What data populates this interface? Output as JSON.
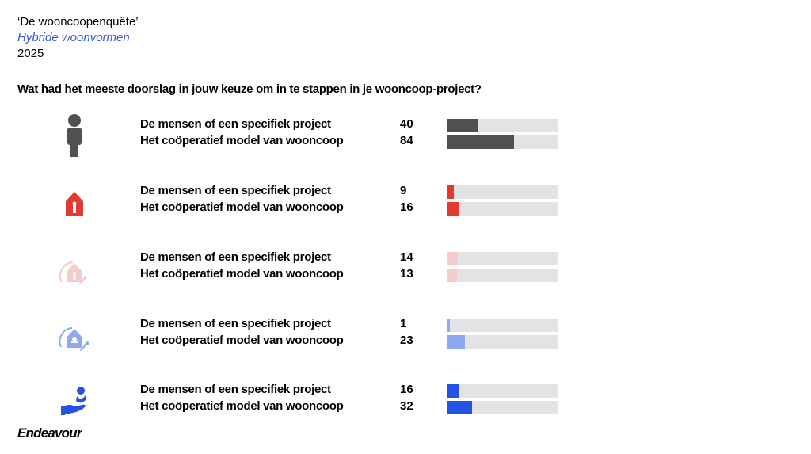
{
  "header": {
    "title": "‘De wooncoopenquête’",
    "subtitle": "Hybride woonvormen",
    "year": "2025"
  },
  "question": "Wat had het meeste doorslag in jouw keuze om in te stappen in je wooncoop-project?",
  "logo": "Endeavour",
  "chart_data": {
    "type": "bar",
    "title": "Wat had het meeste doorslag in jouw keuze om in te stappen in je wooncoop-project?",
    "categories": [
      "De mensen of een specifiek project",
      "Het coöperatief model van wooncoop"
    ],
    "xlim": [
      0,
      140
    ],
    "series": [
      {
        "icon": "person-icon",
        "color": "#505050",
        "values": [
          40,
          84
        ]
      },
      {
        "icon": "house-icon",
        "color": "#e03a33",
        "values": [
          9,
          16
        ]
      },
      {
        "icon": "house-cycle-icon",
        "color": "#f5cccc",
        "values": [
          14,
          13
        ]
      },
      {
        "icon": "house-key-cycle-icon",
        "color": "#8fa8f2",
        "values": [
          1,
          23
        ]
      },
      {
        "icon": "hand-person-icon",
        "color": "#2452e4",
        "values": [
          16,
          32
        ]
      }
    ]
  }
}
